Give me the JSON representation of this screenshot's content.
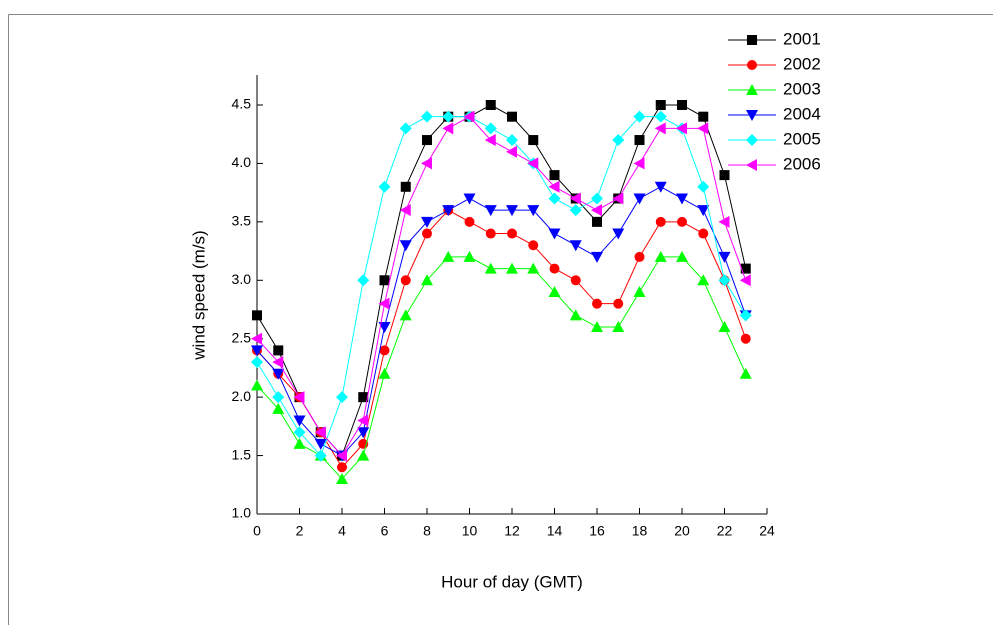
{
  "chart_data": {
    "type": "line",
    "xlabel": "Hour of day (GMT)",
    "ylabel": "wind speed (m/s)",
    "x": [
      0,
      1,
      2,
      3,
      4,
      5,
      6,
      7,
      8,
      9,
      10,
      11,
      12,
      13,
      14,
      15,
      16,
      17,
      18,
      19,
      20,
      21,
      22,
      23
    ],
    "xlim": [
      0,
      24
    ],
    "xticks": [
      0,
      2,
      4,
      6,
      8,
      10,
      12,
      14,
      16,
      18,
      20,
      22,
      24
    ],
    "ylim": [
      1,
      4.5
    ],
    "yticks": [
      {
        "value": 1,
        "label": "1.0"
      },
      1.5,
      {
        "value": 2,
        "label": "2.0"
      },
      2.5,
      {
        "value": 3,
        "label": "3.0"
      },
      3.5,
      {
        "value": 4,
        "label": "4.0"
      },
      4.5
    ],
    "legend": "upper right",
    "series": [
      {
        "name": "2001",
        "color": "#000000",
        "marker": "square",
        "values": [
          2.7,
          2.4,
          2.0,
          1.7,
          1.5,
          2.0,
          3.0,
          3.8,
          4.2,
          4.4,
          4.4,
          4.5,
          4.4,
          4.2,
          3.9,
          3.7,
          3.5,
          3.7,
          4.2,
          4.5,
          4.5,
          4.4,
          3.9,
          3.1
        ]
      },
      {
        "name": "2002",
        "color": "#ff0000",
        "marker": "circle",
        "values": [
          2.4,
          2.2,
          2.0,
          1.7,
          1.4,
          1.6,
          2.4,
          3.0,
          3.4,
          3.6,
          3.5,
          3.4,
          3.4,
          3.3,
          3.1,
          3.0,
          2.8,
          2.8,
          3.2,
          3.5,
          3.5,
          3.4,
          3.0,
          2.5
        ]
      },
      {
        "name": "2003",
        "color": "#00ff00",
        "marker": "triangle-up",
        "values": [
          2.1,
          1.9,
          1.6,
          1.5,
          1.3,
          1.5,
          2.2,
          2.7,
          3.0,
          3.2,
          3.2,
          3.1,
          3.1,
          3.1,
          2.9,
          2.7,
          2.6,
          2.6,
          2.9,
          3.2,
          3.2,
          3.0,
          2.6,
          2.2
        ]
      },
      {
        "name": "2004",
        "color": "#0000ff",
        "marker": "triangle-down",
        "values": [
          2.4,
          2.2,
          1.8,
          1.6,
          1.5,
          1.7,
          2.6,
          3.3,
          3.5,
          3.6,
          3.7,
          3.6,
          3.6,
          3.6,
          3.4,
          3.3,
          3.2,
          3.4,
          3.7,
          3.8,
          3.7,
          3.6,
          3.2,
          2.7
        ]
      },
      {
        "name": "2005",
        "color": "#00ffff",
        "marker": "diamond",
        "values": [
          2.3,
          2.0,
          1.7,
          1.5,
          2.0,
          3.0,
          3.8,
          4.3,
          4.4,
          4.4,
          4.4,
          4.3,
          4.2,
          4.0,
          3.7,
          3.6,
          3.7,
          4.2,
          4.4,
          4.4,
          4.3,
          3.8,
          3.0,
          2.7
        ]
      },
      {
        "name": "2006",
        "color": "#ff00ff",
        "marker": "triangle-left",
        "values": [
          2.5,
          2.3,
          2.0,
          1.7,
          1.5,
          1.8,
          2.8,
          3.6,
          4.0,
          4.3,
          4.4,
          4.2,
          4.1,
          4.0,
          3.8,
          3.7,
          3.6,
          3.7,
          4.0,
          4.3,
          4.3,
          4.3,
          3.5,
          3.0
        ]
      }
    ]
  }
}
